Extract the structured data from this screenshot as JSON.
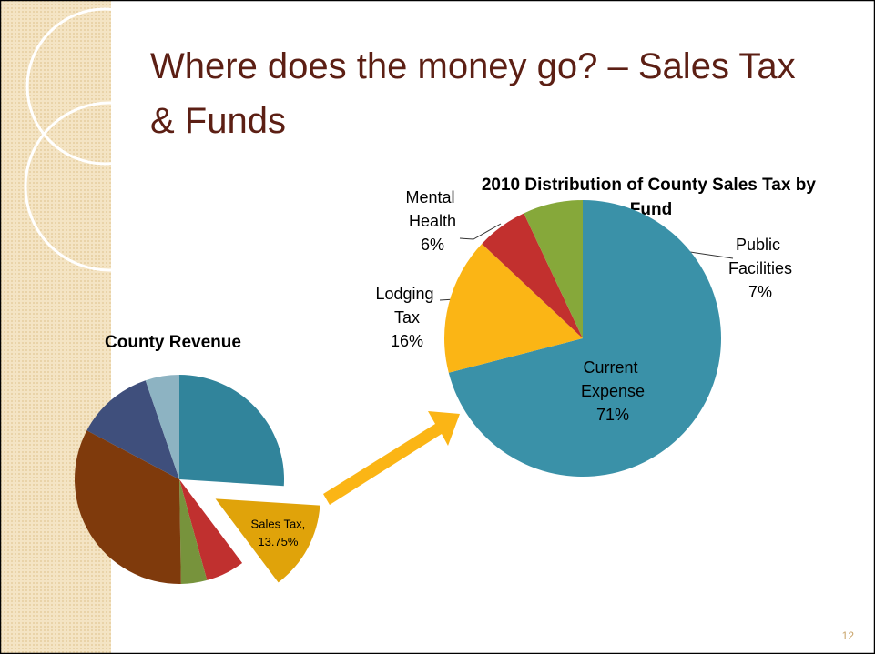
{
  "slide": {
    "title": "Where does the money go? – Sales Tax & Funds",
    "page_number": "12"
  },
  "chart_data": [
    {
      "type": "pie",
      "title": "County Revenue",
      "categories": [
        null,
        "Sales Tax,",
        null,
        null,
        null,
        null,
        null
      ],
      "values": [
        26,
        13.75,
        6,
        4,
        33,
        12,
        5.25
      ],
      "value_labels": [
        null,
        "13.75%",
        null,
        null,
        null,
        null,
        null
      ],
      "colors": [
        "#31849b",
        "#e0a30a",
        "#c0302f",
        "#77933c",
        "#7f3a0c",
        "#3f4f7c",
        "#8db3c2"
      ]
    },
    {
      "type": "pie",
      "title": "2010 Distribution of County Sales Tax by Fund",
      "categories": [
        "Current Expense",
        "Lodging Tax",
        "Mental Health",
        "Public Facilities"
      ],
      "values": [
        71,
        16,
        6,
        7
      ],
      "value_labels": [
        "71%",
        "16%",
        "6%",
        "7%"
      ],
      "colors": [
        "#3a91a8",
        "#fbb515",
        "#c2302e",
        "#86a83a"
      ]
    }
  ]
}
